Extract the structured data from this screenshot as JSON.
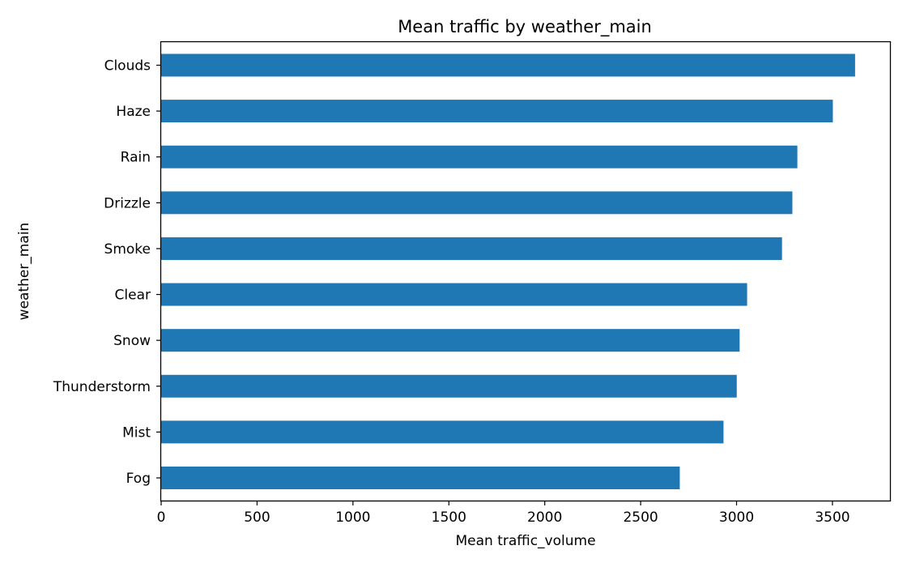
{
  "chart_data": {
    "type": "bar",
    "orientation": "horizontal",
    "title": "Mean traffic by weather_main",
    "xlabel": "Mean traffic_volume",
    "ylabel": "weather_main",
    "categories": [
      "Clouds",
      "Haze",
      "Rain",
      "Drizzle",
      "Smoke",
      "Clear",
      "Snow",
      "Thunderstorm",
      "Mist",
      "Fog"
    ],
    "values": [
      3618,
      3502,
      3317,
      3291,
      3237,
      3055,
      3016,
      3001,
      2932,
      2704
    ],
    "xlim": [
      0,
      3800
    ],
    "xticks": [
      0,
      500,
      1000,
      1500,
      2000,
      2500,
      3000,
      3500
    ],
    "xtick_labels": [
      "0",
      "500",
      "1000",
      "1500",
      "2000",
      "2500",
      "3000",
      "3500"
    ],
    "bar_color": "#1f77b4",
    "grid": false,
    "legend": "none"
  }
}
